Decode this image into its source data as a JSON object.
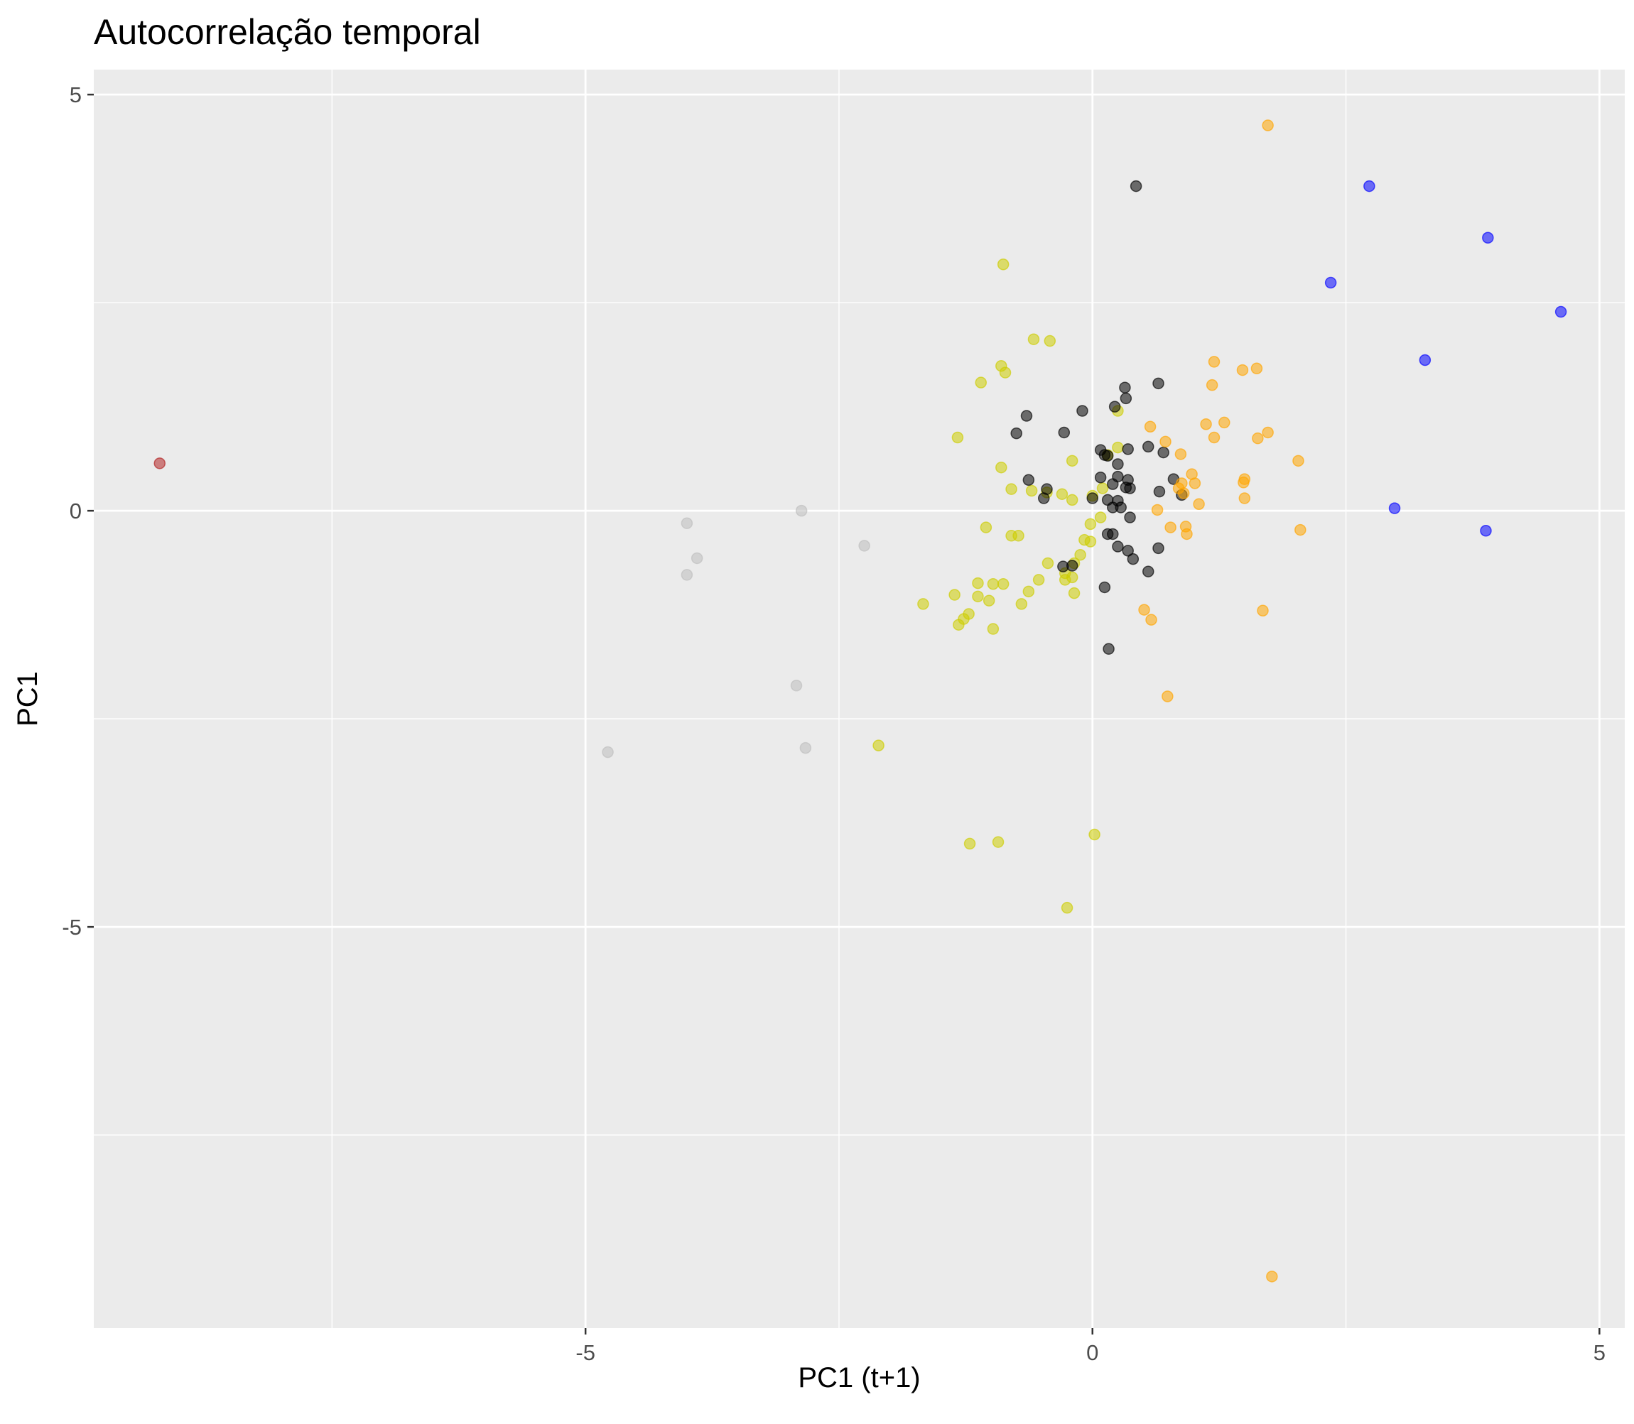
{
  "chart_data": {
    "type": "scatter",
    "title": "Autocorrelação temporal",
    "xlabel": "PC1 (t+1)",
    "ylabel": "PC1",
    "xlim": [
      -9.85,
      5.25
    ],
    "ylim": [
      -9.82,
      5.3
    ],
    "x_ticks": [
      -5,
      0,
      5
    ],
    "y_ticks": [
      -5,
      0,
      5
    ],
    "x_tick_labels": [
      "-5",
      "0",
      "5"
    ],
    "y_tick_labels": [
      "-5",
      "0",
      "5"
    ],
    "x_minor": [
      -7.5,
      -2.5,
      2.5
    ],
    "y_minor": [
      -7.5,
      -2.5,
      2.5
    ],
    "grid": true,
    "legend": "none",
    "point_alpha": 0.55,
    "colors": {
      "red": "#b22222",
      "grey": "#bebebe",
      "yellow": "#cdcd00",
      "black": "#000000",
      "orange": "#ffa500",
      "blue": "#0000ff"
    },
    "series": [
      {
        "color": "red",
        "points": [
          [
            -9.2,
            0.57
          ]
        ]
      },
      {
        "color": "grey",
        "points": [
          [
            -4.0,
            -0.15
          ],
          [
            -3.9,
            -0.57
          ],
          [
            -4.0,
            -0.77
          ],
          [
            -2.87,
            0.0
          ],
          [
            -2.25,
            -0.42
          ],
          [
            -2.92,
            -2.1
          ],
          [
            -2.83,
            -2.85
          ],
          [
            -4.78,
            -2.9
          ]
        ]
      },
      {
        "color": "yellow",
        "points": [
          [
            -0.88,
            2.96
          ],
          [
            -0.58,
            2.06
          ],
          [
            -0.42,
            2.04
          ],
          [
            -0.9,
            1.74
          ],
          [
            -0.86,
            1.66
          ],
          [
            -1.1,
            1.54
          ],
          [
            0.25,
            1.2
          ],
          [
            -1.33,
            0.88
          ],
          [
            -0.9,
            0.52
          ],
          [
            -0.2,
            0.6
          ],
          [
            0.25,
            0.76
          ],
          [
            0.15,
            0.67
          ],
          [
            -0.8,
            0.26
          ],
          [
            -0.6,
            0.24
          ],
          [
            -0.45,
            0.22
          ],
          [
            -0.3,
            0.2
          ],
          [
            -0.2,
            0.13
          ],
          [
            0.1,
            0.27
          ],
          [
            0.0,
            0.18
          ],
          [
            0.08,
            -0.08
          ],
          [
            -0.02,
            -0.16
          ],
          [
            -0.08,
            -0.35
          ],
          [
            -0.02,
            -0.37
          ],
          [
            -0.12,
            -0.53
          ],
          [
            -1.05,
            -0.2
          ],
          [
            -0.8,
            -0.3
          ],
          [
            -0.73,
            -0.3
          ],
          [
            -0.44,
            -0.63
          ],
          [
            -0.18,
            -0.63
          ],
          [
            -0.27,
            -0.75
          ],
          [
            -0.2,
            -0.8
          ],
          [
            -0.27,
            -0.83
          ],
          [
            -0.53,
            -0.83
          ],
          [
            -0.88,
            -0.88
          ],
          [
            -0.98,
            -0.88
          ],
          [
            -1.13,
            -0.87
          ],
          [
            -1.13,
            -1.03
          ],
          [
            -1.02,
            -1.08
          ],
          [
            -1.36,
            -1.01
          ],
          [
            -1.67,
            -1.12
          ],
          [
            -0.63,
            -0.97
          ],
          [
            -0.7,
            -1.12
          ],
          [
            -0.18,
            -0.99
          ],
          [
            -1.22,
            -1.24
          ],
          [
            -1.27,
            -1.3
          ],
          [
            -1.32,
            -1.37
          ],
          [
            -0.98,
            -1.42
          ],
          [
            -2.11,
            -2.82
          ],
          [
            0.02,
            -3.89
          ],
          [
            -0.93,
            -3.98
          ],
          [
            -1.21,
            -4.0
          ],
          [
            -0.25,
            -4.77
          ]
        ]
      },
      {
        "color": "black",
        "points": [
          [
            0.43,
            3.9
          ],
          [
            0.65,
            1.53
          ],
          [
            0.32,
            1.48
          ],
          [
            0.33,
            1.35
          ],
          [
            0.22,
            1.25
          ],
          [
            -0.1,
            1.2
          ],
          [
            -0.65,
            1.14
          ],
          [
            -0.75,
            0.93
          ],
          [
            -0.28,
            0.94
          ],
          [
            0.35,
            0.74
          ],
          [
            0.55,
            0.77
          ],
          [
            0.7,
            0.7
          ],
          [
            0.08,
            0.73
          ],
          [
            0.12,
            0.67
          ],
          [
            0.15,
            0.66
          ],
          [
            0.25,
            0.56
          ],
          [
            -0.63,
            0.37
          ],
          [
            -0.45,
            0.26
          ],
          [
            -0.48,
            0.15
          ],
          [
            0.08,
            0.4
          ],
          [
            0.2,
            0.32
          ],
          [
            0.25,
            0.41
          ],
          [
            0.35,
            0.37
          ],
          [
            0.33,
            0.28
          ],
          [
            0.37,
            0.27
          ],
          [
            0.0,
            0.15
          ],
          [
            0.15,
            0.13
          ],
          [
            0.2,
            0.04
          ],
          [
            0.28,
            0.04
          ],
          [
            0.25,
            0.12
          ],
          [
            0.88,
            0.19
          ],
          [
            0.8,
            0.38
          ],
          [
            0.66,
            0.23
          ],
          [
            0.37,
            -0.08
          ],
          [
            0.15,
            -0.28
          ],
          [
            0.2,
            -0.28
          ],
          [
            0.25,
            -0.43
          ],
          [
            0.35,
            -0.48
          ],
          [
            0.4,
            -0.58
          ],
          [
            0.65,
            -0.45
          ],
          [
            0.55,
            -0.73
          ],
          [
            -0.2,
            -0.66
          ],
          [
            -0.29,
            -0.67
          ],
          [
            0.12,
            -0.92
          ],
          [
            0.16,
            -1.66
          ]
        ]
      },
      {
        "color": "orange",
        "points": [
          [
            1.73,
            4.63
          ],
          [
            1.2,
            1.79
          ],
          [
            1.48,
            1.69
          ],
          [
            1.62,
            1.71
          ],
          [
            1.18,
            1.51
          ],
          [
            1.3,
            1.06
          ],
          [
            1.12,
            1.04
          ],
          [
            0.57,
            1.01
          ],
          [
            1.2,
            0.88
          ],
          [
            1.73,
            0.94
          ],
          [
            1.63,
            0.87
          ],
          [
            0.72,
            0.83
          ],
          [
            0.87,
            0.68
          ],
          [
            2.03,
            0.6
          ],
          [
            0.98,
            0.44
          ],
          [
            1.5,
            0.38
          ],
          [
            1.49,
            0.34
          ],
          [
            1.01,
            0.33
          ],
          [
            0.88,
            0.33
          ],
          [
            0.85,
            0.27
          ],
          [
            0.9,
            0.21
          ],
          [
            1.5,
            0.15
          ],
          [
            1.05,
            0.08
          ],
          [
            0.64,
            0.01
          ],
          [
            0.77,
            -0.2
          ],
          [
            0.92,
            -0.19
          ],
          [
            2.05,
            -0.23
          ],
          [
            0.93,
            -0.28
          ],
          [
            0.51,
            -1.19
          ],
          [
            0.58,
            -1.31
          ],
          [
            1.68,
            -1.2
          ],
          [
            0.74,
            -2.23
          ],
          [
            1.77,
            -9.2
          ]
        ]
      },
      {
        "color": "blue",
        "points": [
          [
            2.73,
            3.9
          ],
          [
            2.35,
            2.74
          ],
          [
            3.9,
            3.28
          ],
          [
            4.62,
            2.39
          ],
          [
            3.28,
            1.81
          ],
          [
            2.98,
            0.03
          ],
          [
            3.88,
            -0.24
          ]
        ]
      }
    ]
  }
}
